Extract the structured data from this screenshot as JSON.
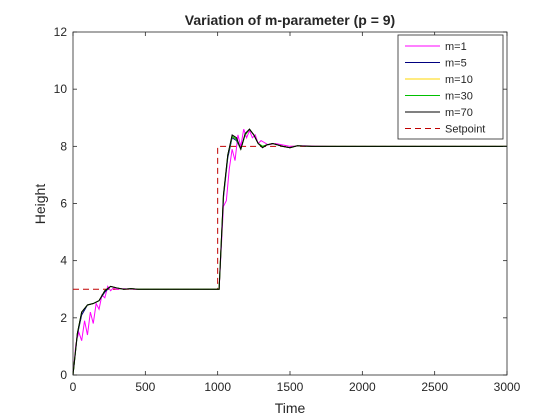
{
  "chart_data": {
    "type": "line",
    "title": "Variation of m-parameter (p = 9)",
    "xlabel": "Time",
    "ylabel": "Height",
    "xlim": [
      0,
      3000
    ],
    "ylim": [
      0,
      12
    ],
    "xticks": [
      0,
      500,
      1000,
      1500,
      2000,
      2500,
      3000
    ],
    "yticks": [
      0,
      2,
      4,
      6,
      8,
      10,
      12
    ],
    "grid": false,
    "legend_position": "top-right",
    "series": [
      {
        "name": "m=1",
        "color": "#ff00ff",
        "style": "solid",
        "points": [
          [
            0,
            0
          ],
          [
            20,
            1.1
          ],
          [
            40,
            1.5
          ],
          [
            60,
            1.2
          ],
          [
            80,
            1.9
          ],
          [
            100,
            1.4
          ],
          [
            120,
            2.2
          ],
          [
            140,
            1.8
          ],
          [
            160,
            2.5
          ],
          [
            180,
            2.3
          ],
          [
            200,
            2.8
          ],
          [
            220,
            2.7
          ],
          [
            240,
            3.1
          ],
          [
            260,
            2.95
          ],
          [
            280,
            3.05
          ],
          [
            300,
            3.0
          ],
          [
            350,
            3.02
          ],
          [
            400,
            3.0
          ],
          [
            600,
            3.0
          ],
          [
            1010,
            3.0
          ],
          [
            1040,
            5.9
          ],
          [
            1060,
            6.1
          ],
          [
            1080,
            7.2
          ],
          [
            1100,
            7.9
          ],
          [
            1120,
            7.5
          ],
          [
            1140,
            8.4
          ],
          [
            1160,
            8.0
          ],
          [
            1180,
            8.6
          ],
          [
            1200,
            8.3
          ],
          [
            1220,
            8.55
          ],
          [
            1240,
            8.3
          ],
          [
            1260,
            8.4
          ],
          [
            1280,
            8.1
          ],
          [
            1300,
            8.2
          ],
          [
            1350,
            8.05
          ],
          [
            1400,
            8.1
          ],
          [
            1500,
            8.0
          ],
          [
            1600,
            8.02
          ],
          [
            1800,
            8.0
          ],
          [
            3000,
            8.0
          ]
        ]
      },
      {
        "name": "m=5",
        "color": "#000080",
        "style": "solid",
        "points": [
          [
            0,
            0
          ],
          [
            30,
            1.4
          ],
          [
            60,
            2.1
          ],
          [
            100,
            2.45
          ],
          [
            140,
            2.5
          ],
          [
            180,
            2.6
          ],
          [
            220,
            2.9
          ],
          [
            260,
            3.1
          ],
          [
            300,
            3.05
          ],
          [
            350,
            3.0
          ],
          [
            400,
            3.02
          ],
          [
            450,
            3.0
          ],
          [
            1010,
            3.0
          ],
          [
            1040,
            6.2
          ],
          [
            1070,
            7.6
          ],
          [
            1100,
            8.3
          ],
          [
            1130,
            8.2
          ],
          [
            1160,
            7.9
          ],
          [
            1190,
            8.4
          ],
          [
            1220,
            8.6
          ],
          [
            1250,
            8.4
          ],
          [
            1280,
            8.1
          ],
          [
            1310,
            8.0
          ],
          [
            1340,
            8.05
          ],
          [
            1380,
            8.1
          ],
          [
            1450,
            8.0
          ],
          [
            1500,
            7.95
          ],
          [
            1550,
            8.02
          ],
          [
            1650,
            8.0
          ],
          [
            3000,
            8.0
          ]
        ]
      },
      {
        "name": "m=10",
        "color": "#ffd700",
        "style": "solid",
        "points": [
          [
            0,
            0
          ],
          [
            30,
            1.45
          ],
          [
            60,
            2.2
          ],
          [
            100,
            2.45
          ],
          [
            140,
            2.5
          ],
          [
            180,
            2.6
          ],
          [
            220,
            2.95
          ],
          [
            260,
            3.1
          ],
          [
            300,
            3.05
          ],
          [
            350,
            3.0
          ],
          [
            400,
            3.02
          ],
          [
            450,
            3.0
          ],
          [
            1010,
            3.0
          ],
          [
            1040,
            6.3
          ],
          [
            1070,
            7.7
          ],
          [
            1100,
            8.35
          ],
          [
            1130,
            8.25
          ],
          [
            1160,
            7.9
          ],
          [
            1190,
            8.4
          ],
          [
            1220,
            8.6
          ],
          [
            1250,
            8.4
          ],
          [
            1280,
            8.1
          ],
          [
            1310,
            8.0
          ],
          [
            1340,
            8.05
          ],
          [
            1380,
            8.1
          ],
          [
            1450,
            8.0
          ],
          [
            1500,
            7.95
          ],
          [
            1550,
            8.02
          ],
          [
            1650,
            8.0
          ],
          [
            3000,
            8.0
          ]
        ]
      },
      {
        "name": "m=30",
        "color": "#00c000",
        "style": "solid",
        "points": [
          [
            0,
            0
          ],
          [
            30,
            1.45
          ],
          [
            60,
            2.2
          ],
          [
            100,
            2.45
          ],
          [
            140,
            2.5
          ],
          [
            180,
            2.6
          ],
          [
            220,
            2.95
          ],
          [
            260,
            3.1
          ],
          [
            300,
            3.05
          ],
          [
            350,
            3.0
          ],
          [
            400,
            3.02
          ],
          [
            450,
            3.0
          ],
          [
            1010,
            3.0
          ],
          [
            1040,
            6.3
          ],
          [
            1070,
            7.7
          ],
          [
            1100,
            8.35
          ],
          [
            1130,
            8.25
          ],
          [
            1160,
            7.9
          ],
          [
            1190,
            8.4
          ],
          [
            1220,
            8.6
          ],
          [
            1250,
            8.4
          ],
          [
            1280,
            8.1
          ],
          [
            1310,
            8.0
          ],
          [
            1340,
            8.05
          ],
          [
            1380,
            8.1
          ],
          [
            1450,
            8.0
          ],
          [
            1500,
            7.95
          ],
          [
            1550,
            8.02
          ],
          [
            1650,
            8.0
          ],
          [
            3000,
            8.0
          ]
        ]
      },
      {
        "name": "m=70",
        "color": "#000000",
        "style": "solid",
        "points": [
          [
            0,
            0
          ],
          [
            30,
            1.45
          ],
          [
            60,
            2.2
          ],
          [
            100,
            2.45
          ],
          [
            140,
            2.5
          ],
          [
            180,
            2.6
          ],
          [
            220,
            2.95
          ],
          [
            260,
            3.1
          ],
          [
            300,
            3.05
          ],
          [
            350,
            3.0
          ],
          [
            400,
            3.02
          ],
          [
            450,
            3.0
          ],
          [
            1010,
            3.0
          ],
          [
            1040,
            6.3
          ],
          [
            1070,
            7.7
          ],
          [
            1100,
            8.4
          ],
          [
            1130,
            8.3
          ],
          [
            1160,
            7.9
          ],
          [
            1190,
            8.45
          ],
          [
            1220,
            8.6
          ],
          [
            1250,
            8.4
          ],
          [
            1280,
            8.1
          ],
          [
            1310,
            7.95
          ],
          [
            1340,
            8.05
          ],
          [
            1380,
            8.1
          ],
          [
            1450,
            8.0
          ],
          [
            1500,
            7.95
          ],
          [
            1550,
            8.02
          ],
          [
            1650,
            8.0
          ],
          [
            3000,
            8.0
          ]
        ]
      },
      {
        "name": "Setpoint",
        "color": "#c00000",
        "style": "dashed",
        "points": [
          [
            0,
            3
          ],
          [
            1000,
            3
          ],
          [
            1000,
            8
          ],
          [
            3000,
            8
          ]
        ]
      }
    ]
  }
}
